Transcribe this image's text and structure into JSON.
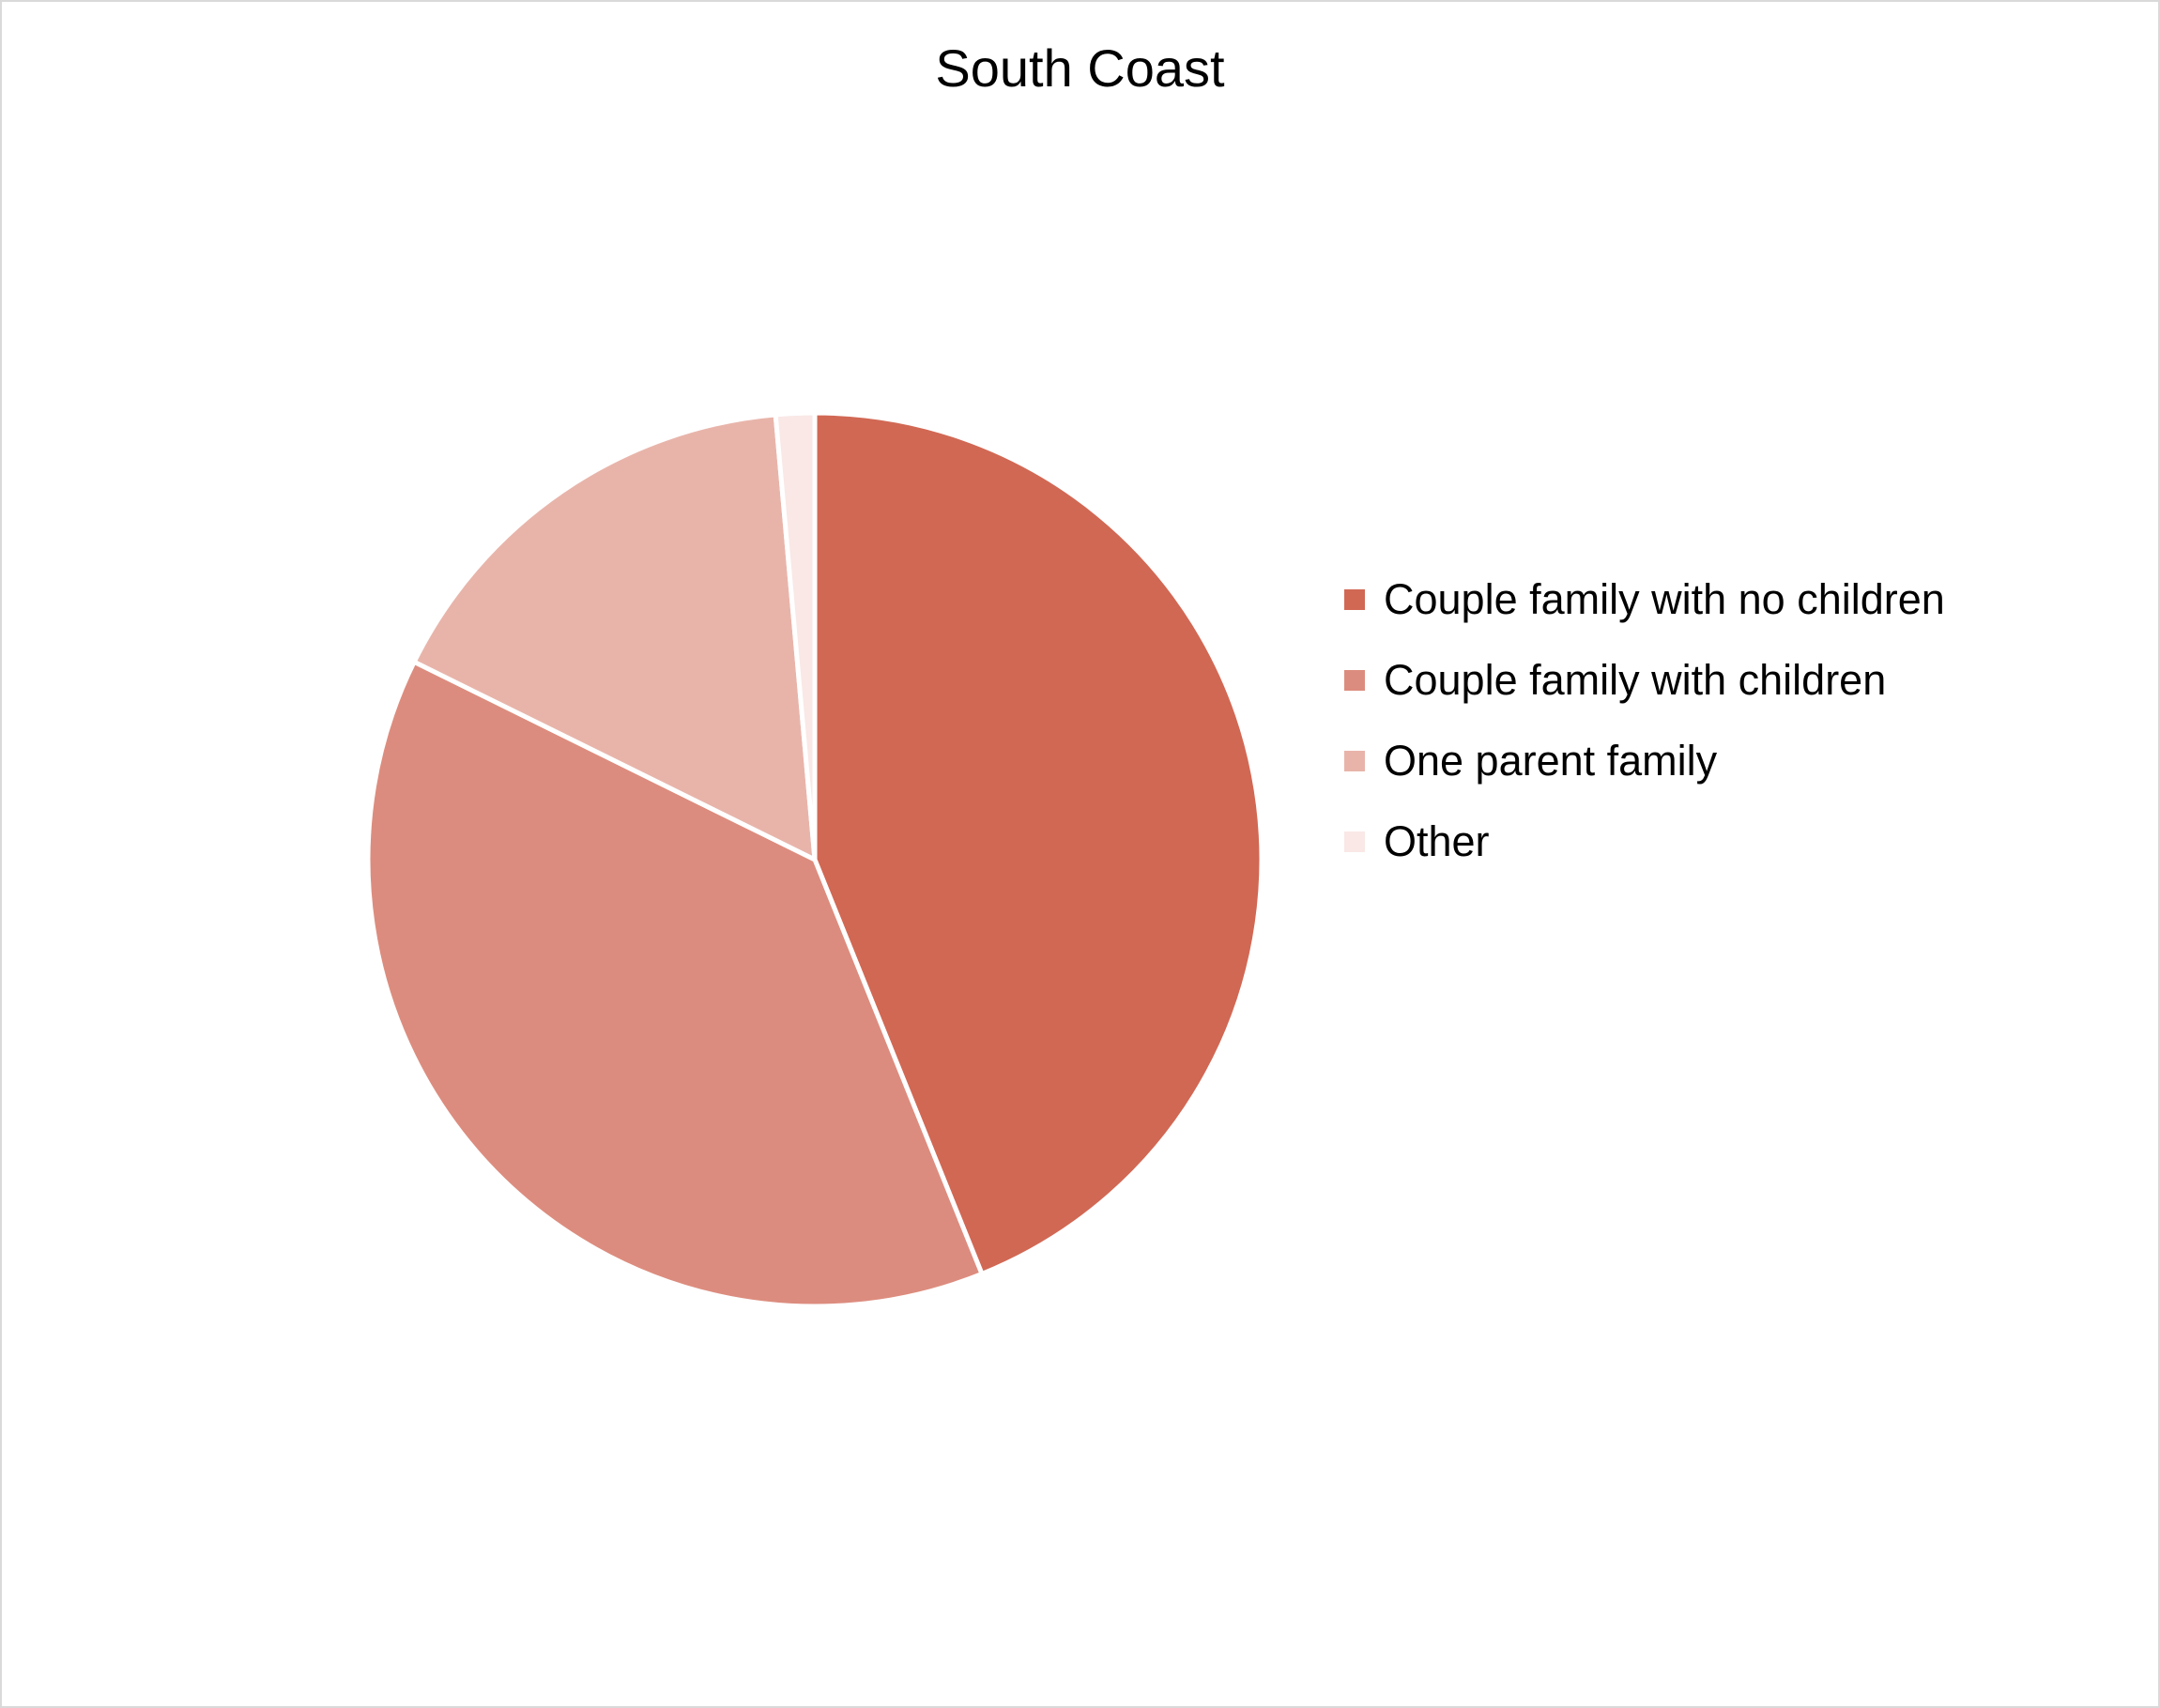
{
  "chart_data": {
    "type": "pie",
    "title": "South Coast",
    "categories": [
      "Couple family with no children",
      "Couple family with children",
      "One parent family",
      "Other"
    ],
    "values": [
      43.9,
      38.4,
      16.3,
      1.4
    ],
    "colors": [
      "#d16854",
      "#dc8c7e",
      "#e8b4aa",
      "#f9e8e6"
    ],
    "start_angle_deg": 0,
    "direction": "clockwise",
    "legend_position": "right"
  }
}
